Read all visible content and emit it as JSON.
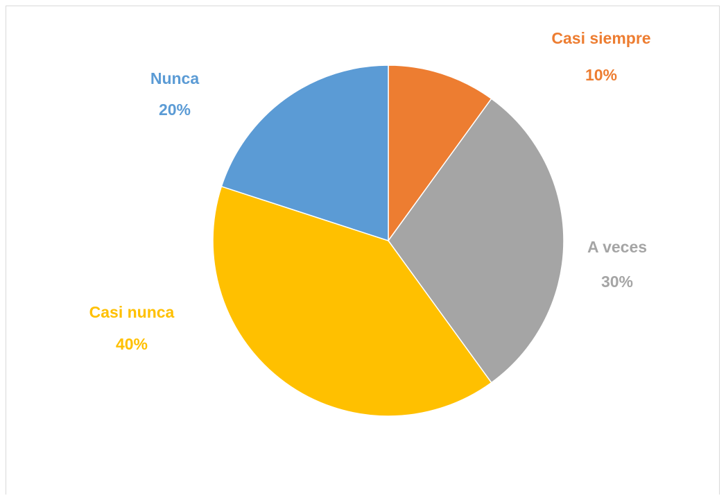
{
  "chart_data": {
    "type": "pie",
    "categories": [
      "Casi siempre",
      "A veces",
      "Casi nunca",
      "Nunca"
    ],
    "values": [
      10,
      30,
      40,
      20
    ],
    "value_labels": [
      "10%",
      "30%",
      "40%",
      "20%"
    ],
    "colors": [
      "#ED7D31",
      "#A5A5A5",
      "#FFC000",
      "#5B9BD5"
    ]
  }
}
